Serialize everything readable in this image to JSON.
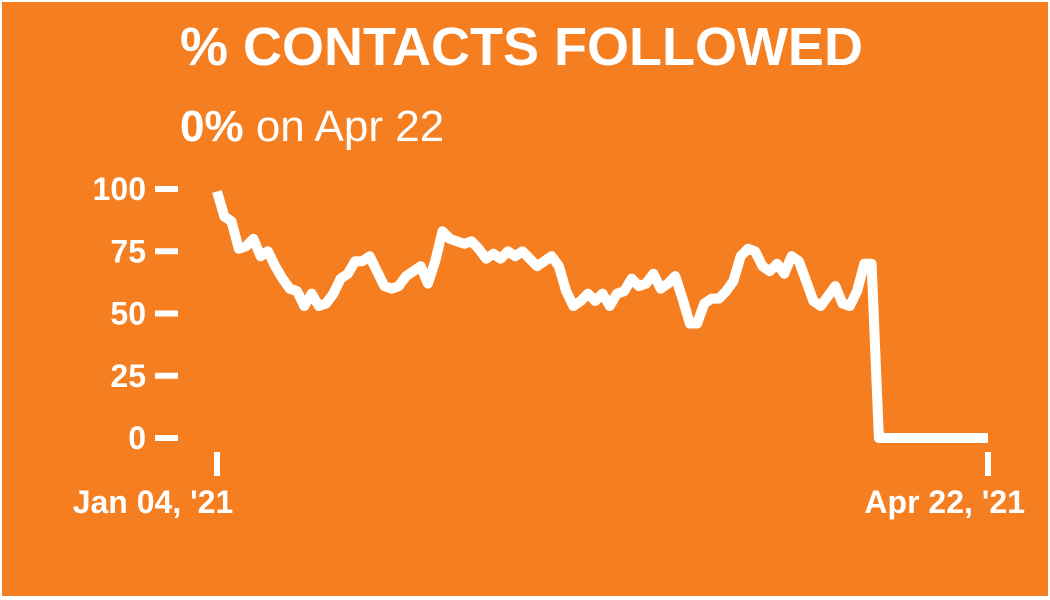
{
  "colors": {
    "background": "#F47E20",
    "foreground": "#FFFFFF"
  },
  "header": {
    "title": "% CONTACTS FOLLOWED",
    "subtitle_value": "0%",
    "subtitle_rest": " on Apr 22"
  },
  "chart_data": {
    "type": "line",
    "title": "% CONTACTS FOLLOWED",
    "subtitle": "0% on Apr 22",
    "xlabel": "",
    "ylabel": "",
    "ylim": [
      0,
      100
    ],
    "yticks": [
      0,
      25,
      50,
      75,
      100
    ],
    "ytick_labels": [
      "0",
      "25",
      "50",
      "75",
      "100"
    ],
    "xtick_labels": [
      "Jan 04, '21",
      "Apr 22, '21"
    ],
    "grid": false,
    "legend": "none",
    "x_start": "2021-01-04",
    "x_end": "2021-04-22",
    "series": [
      {
        "values": [
          99,
          89,
          87,
          76,
          77,
          80,
          73,
          75,
          69,
          64,
          60,
          59,
          53,
          58,
          53,
          54,
          58,
          64,
          66,
          71,
          71,
          73,
          67,
          61,
          60,
          61,
          65,
          67,
          69,
          62,
          71,
          83,
          80,
          79,
          78,
          79,
          76,
          72,
          74,
          72,
          75,
          73,
          75,
          72,
          69,
          71,
          73,
          69,
          59,
          53,
          55,
          58,
          55,
          58,
          53,
          58,
          59,
          64,
          61,
          62,
          66,
          60,
          62,
          65,
          56,
          46,
          46,
          54,
          56,
          56,
          59,
          63,
          73,
          76,
          75,
          69,
          67,
          70,
          66,
          73,
          71,
          63,
          55,
          53,
          57,
          61,
          54,
          53,
          59,
          70,
          70,
          0,
          0,
          0,
          0,
          0,
          0,
          0,
          0,
          0,
          0,
          0,
          0,
          0,
          0,
          0,
          0
        ]
      }
    ]
  }
}
